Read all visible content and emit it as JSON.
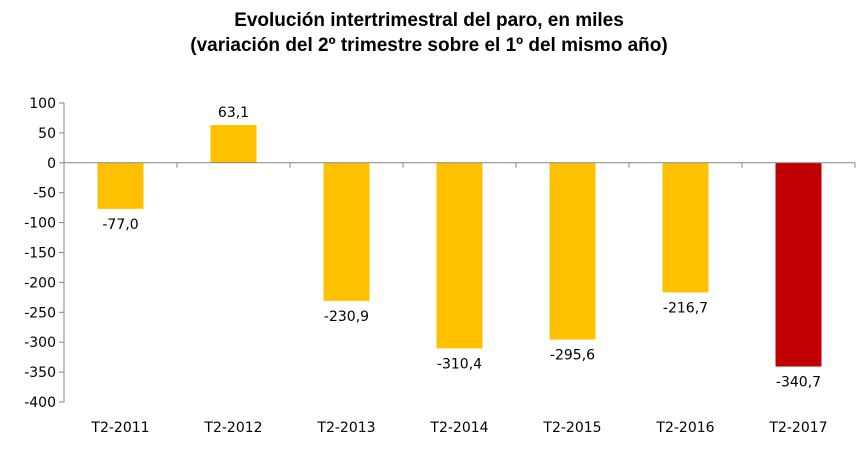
{
  "chart_data": {
    "type": "bar",
    "title": "Evolución intertrimestral del paro, en miles",
    "subtitle": "(variación del 2º trimestre sobre el 1º del mismo año)",
    "categories": [
      "T2-2011",
      "T2-2012",
      "T2-2013",
      "T2-2014",
      "T2-2015",
      "T2-2016",
      "T2-2017"
    ],
    "values": [
      -77.0,
      63.1,
      -230.9,
      -310.4,
      -295.6,
      -216.7,
      -340.7
    ],
    "data_labels": [
      "-77,0",
      "63,1",
      "-230,9",
      "-310,4",
      "-295,6",
      "-216,7",
      "-340,7"
    ],
    "ylim": [
      -400,
      100
    ],
    "yticks": [
      100,
      50,
      0,
      -50,
      -100,
      -150,
      -200,
      -250,
      -300,
      -350,
      -400
    ],
    "grid": false,
    "xlabel": "",
    "ylabel": "",
    "colors": {
      "default": "#FFC000",
      "highlight": "#C00000",
      "highlight_category": "T2-2017",
      "axis": "#868686"
    }
  }
}
